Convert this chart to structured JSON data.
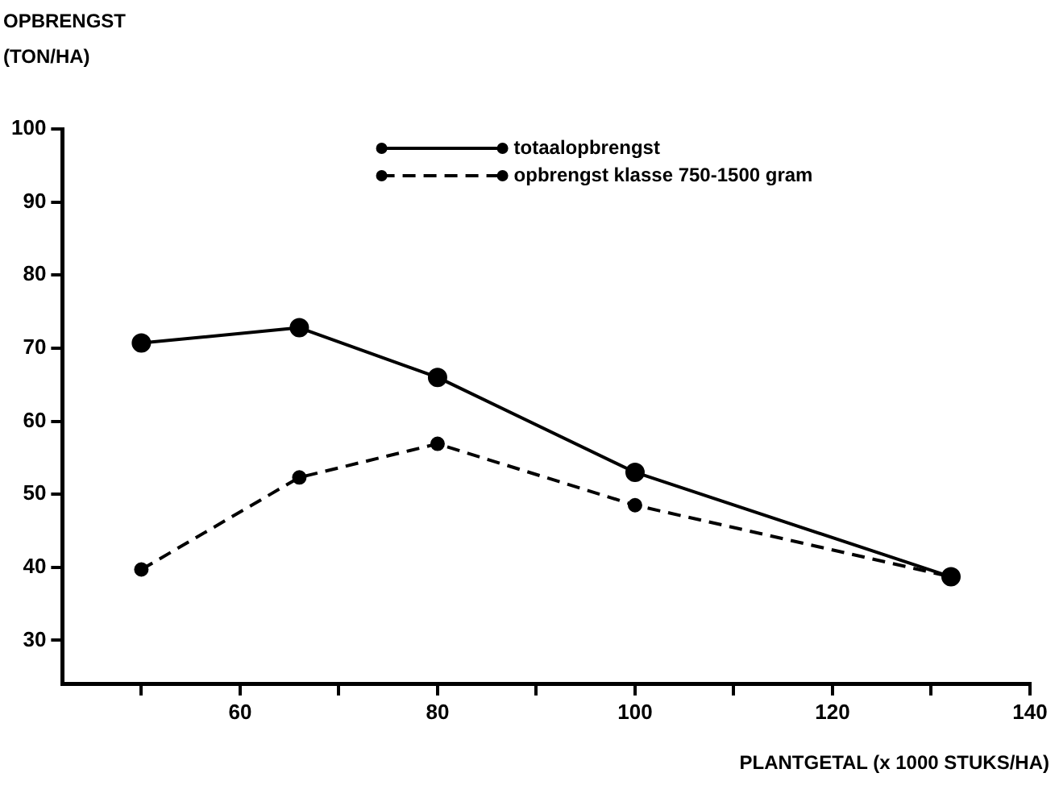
{
  "chart_data": {
    "type": "line",
    "ylabel": "OPBRENGST\n(TON/HA)",
    "xlabel": "PLANTGETAL (x 1000 STUKS/HA)",
    "x": [
      50,
      66,
      80,
      100,
      132
    ],
    "series": [
      {
        "name": "totaalopbrengst",
        "color": "#000000",
        "line_style": "solid",
        "values": [
          70.7,
          72.8,
          66,
          53,
          38.7
        ]
      },
      {
        "name": "opbrengst klasse 750-1500 gram",
        "color": "#000000",
        "line_style": "dashed",
        "values": [
          39.7,
          52.3,
          56.9,
          48.5,
          38.7
        ]
      }
    ],
    "xlim": [
      42,
      140
    ],
    "xticks": [
      {
        "value": 50,
        "label": null
      },
      60,
      {
        "value": 70,
        "label": null
      },
      80,
      {
        "value": 90,
        "label": null
      },
      100,
      {
        "value": 110,
        "label": null
      },
      120,
      {
        "value": 130,
        "label": null
      },
      140
    ],
    "ylim": [
      24,
      100
    ],
    "yticks": [
      30,
      40,
      50,
      60,
      70,
      80,
      90,
      100
    ],
    "grid": false,
    "legend": "top",
    "marker": "circle"
  }
}
